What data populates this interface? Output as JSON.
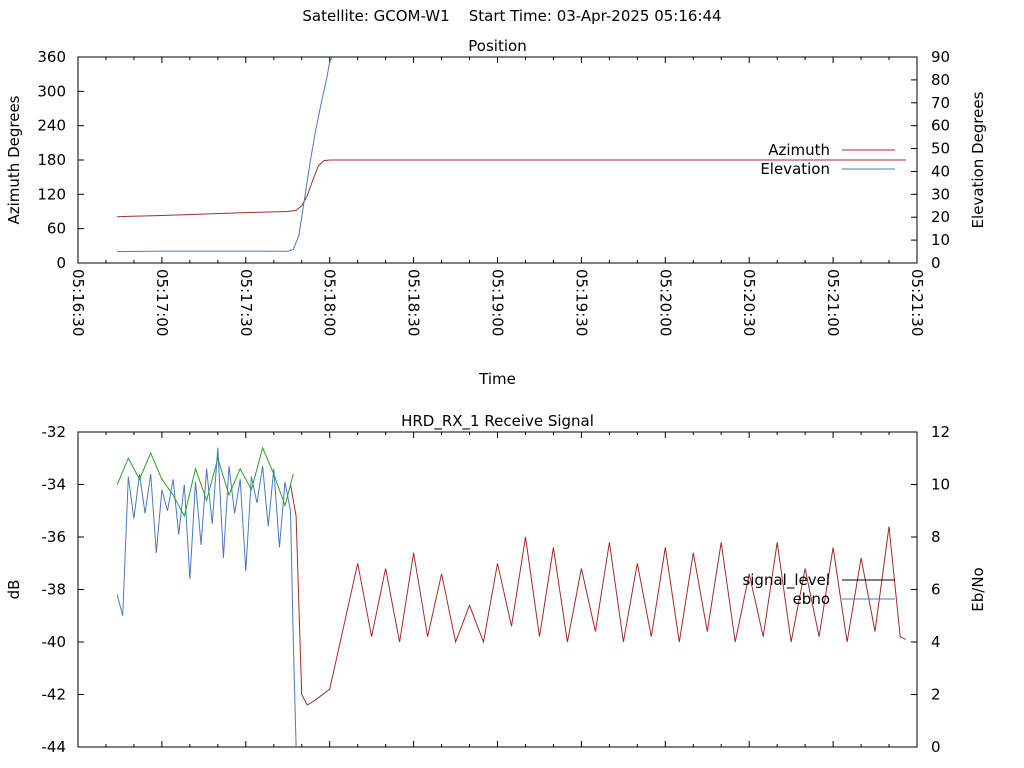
{
  "header": {
    "satellite_label": "Satellite: GCOM-W1",
    "start_time_label": "Start Time: 03-Apr-2025 05:16:44"
  },
  "chart_data": [
    {
      "type": "line",
      "title": "Position",
      "xlabel": "Time",
      "ylabel": "Azimuth Degrees",
      "y2label": "Elevation Degrees",
      "xlim": [
        "05:16:30",
        "05:21:30"
      ],
      "ylim": [
        0,
        360
      ],
      "y2lim": [
        0,
        90
      ],
      "x_ticks": [
        "05:16:30",
        "05:17:00",
        "05:17:30",
        "05:18:00",
        "05:18:30",
        "05:19:00",
        "05:19:30",
        "05:20:00",
        "05:20:30",
        "05:21:00",
        "05:21:30"
      ],
      "y_ticks": [
        0,
        60,
        120,
        180,
        240,
        300,
        360
      ],
      "y2_ticks": [
        0,
        10,
        20,
        30,
        40,
        50,
        60,
        70,
        80,
        90
      ],
      "legend_position": "right",
      "grid": false,
      "series": [
        {
          "name": "Azimuth",
          "axis": "left",
          "color": "#a52a2a",
          "x": [
            "05:16:44",
            "05:17:00",
            "05:17:30",
            "05:17:45",
            "05:17:48",
            "05:17:50",
            "05:17:52",
            "05:17:54",
            "05:17:56",
            "05:17:58",
            "05:18:00",
            "05:18:30",
            "05:19:00",
            "05:20:00",
            "05:21:00",
            "05:21:26"
          ],
          "y": [
            81,
            83,
            88,
            90,
            92,
            100,
            118,
            145,
            170,
            179,
            180,
            180,
            180,
            180,
            180,
            180
          ]
        },
        {
          "name": "Elevation",
          "axis": "right",
          "color": "#4a78c2",
          "x": [
            "05:16:44",
            "05:17:00",
            "05:17:30",
            "05:17:45",
            "05:17:47",
            "05:17:49",
            "05:17:51",
            "05:17:53",
            "05:17:55",
            "05:17:57",
            "05:17:59",
            "05:18:00",
            "05:18:01"
          ],
          "y": [
            5,
            5.2,
            5.2,
            5.1,
            6,
            12,
            28,
            44,
            58,
            70,
            81,
            88,
            90
          ]
        }
      ]
    },
    {
      "type": "line",
      "title": "HRD_RX_1 Receive Signal",
      "xlabel": "",
      "ylabel": "dB",
      "y2label": "Eb/No",
      "xlim": [
        "05:16:30",
        "05:21:30"
      ],
      "ylim": [
        -44,
        -32
      ],
      "y2lim": [
        0,
        12
      ],
      "y_ticks": [
        -44,
        -42,
        -40,
        -38,
        -36,
        -34,
        -32
      ],
      "y2_ticks": [
        0,
        2,
        4,
        6,
        8,
        10,
        12
      ],
      "legend_position": "right",
      "grid": false,
      "series": [
        {
          "name": "signal_level",
          "axis": "left",
          "color": "#a52a2a",
          "x": [
            "05:17:46",
            "05:17:48",
            "05:17:50",
            "05:17:52",
            "05:17:55",
            "05:18:00",
            "05:18:05",
            "05:18:10",
            "05:18:15",
            "05:18:20",
            "05:18:25",
            "05:18:30",
            "05:18:35",
            "05:18:40",
            "05:18:45",
            "05:18:50",
            "05:18:55",
            "05:19:00",
            "05:19:05",
            "05:19:10",
            "05:19:15",
            "05:19:20",
            "05:19:25",
            "05:19:30",
            "05:19:35",
            "05:19:40",
            "05:19:45",
            "05:19:50",
            "05:19:55",
            "05:20:00",
            "05:20:05",
            "05:20:10",
            "05:20:15",
            "05:20:20",
            "05:20:25",
            "05:20:30",
            "05:20:35",
            "05:20:40",
            "05:20:45",
            "05:20:50",
            "05:20:55",
            "05:21:00",
            "05:21:05",
            "05:21:10",
            "05:21:15",
            "05:21:20",
            "05:21:24",
            "05:21:26"
          ],
          "y": [
            -34.0,
            -35.2,
            -42.0,
            -42.4,
            -42.2,
            -41.8,
            -39.4,
            -37.0,
            -39.8,
            -37.2,
            -40.0,
            -36.6,
            -39.8,
            -37.4,
            -40.0,
            -38.6,
            -40.0,
            -37.0,
            -39.4,
            -36.0,
            -39.8,
            -36.4,
            -40.0,
            -37.2,
            -39.6,
            -36.2,
            -40.0,
            -37.0,
            -39.8,
            -36.4,
            -40.0,
            -36.6,
            -39.6,
            -36.2,
            -40.0,
            -37.4,
            -39.8,
            -36.2,
            -40.0,
            -37.2,
            -39.8,
            -36.4,
            -40.0,
            -36.8,
            -39.6,
            -35.6,
            -39.8,
            -39.9
          ]
        },
        {
          "name": "ebno",
          "axis": "right",
          "color": "#4a78c2",
          "x": [
            "05:16:44",
            "05:16:46",
            "05:16:48",
            "05:16:50",
            "05:16:52",
            "05:16:54",
            "05:16:56",
            "05:16:58",
            "05:17:00",
            "05:17:02",
            "05:17:04",
            "05:17:06",
            "05:17:08",
            "05:17:10",
            "05:17:12",
            "05:17:14",
            "05:17:16",
            "05:17:18",
            "05:17:20",
            "05:17:22",
            "05:17:24",
            "05:17:26",
            "05:17:28",
            "05:17:30",
            "05:17:32",
            "05:17:34",
            "05:17:36",
            "05:17:38",
            "05:17:40",
            "05:17:42",
            "05:17:44",
            "05:17:46",
            "05:17:47",
            "05:17:48"
          ],
          "y": [
            5.8,
            5.0,
            10.3,
            8.7,
            10.4,
            8.9,
            10.4,
            7.4,
            9.8,
            9.0,
            10.2,
            8.1,
            10.0,
            6.4,
            10.1,
            7.7,
            10.6,
            8.5,
            11.4,
            7.2,
            10.7,
            8.9,
            10.2,
            6.7,
            10.3,
            9.3,
            10.7,
            8.4,
            10.6,
            7.6,
            10.1,
            9.0,
            4.0,
            0.0
          ]
        },
        {
          "name": "",
          "axis": "left",
          "color": "#2ca02c",
          "x": [
            "05:16:44",
            "05:16:48",
            "05:16:52",
            "05:16:56",
            "05:17:00",
            "05:17:04",
            "05:17:08",
            "05:17:12",
            "05:17:16",
            "05:17:20",
            "05:17:24",
            "05:17:28",
            "05:17:32",
            "05:17:36",
            "05:17:40",
            "05:17:44",
            "05:17:47"
          ],
          "y": [
            -34.0,
            -33.0,
            -33.8,
            -32.8,
            -33.8,
            -34.4,
            -35.2,
            -33.4,
            -34.6,
            -33.0,
            -34.4,
            -33.4,
            -34.2,
            -32.6,
            -33.6,
            -34.8,
            -33.6
          ]
        }
      ]
    }
  ]
}
